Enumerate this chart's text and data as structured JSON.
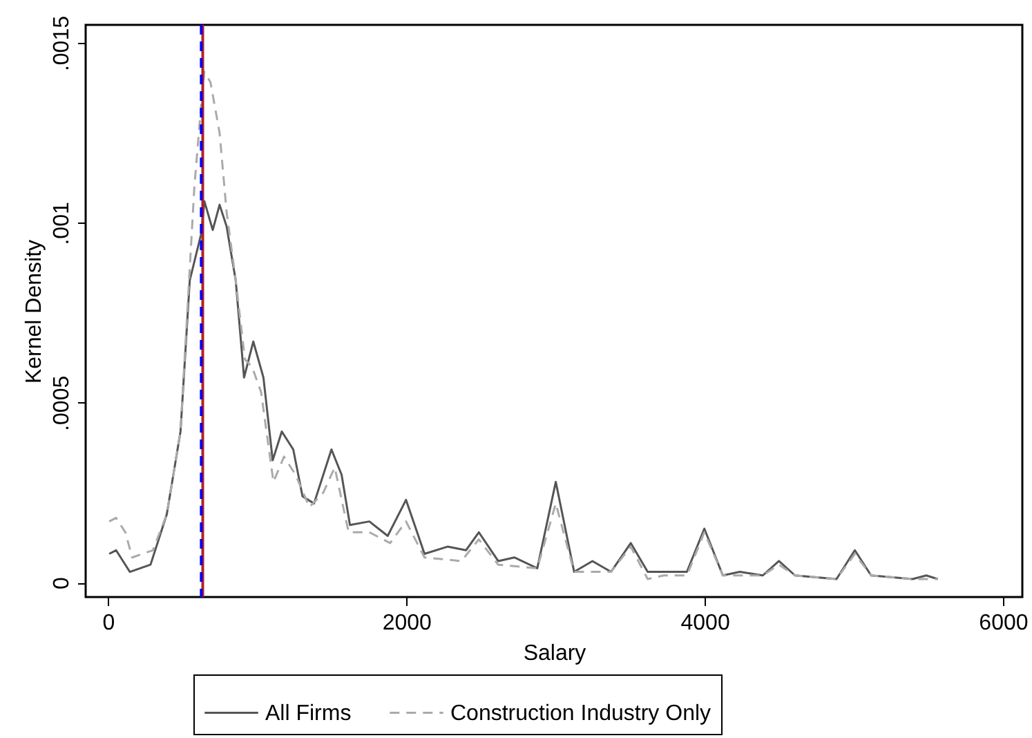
{
  "chart_data": {
    "type": "line",
    "xlabel": "Salary",
    "ylabel": "Kernel Density",
    "legend": "bottom",
    "xlim": [
      -150,
      6130
    ],
    "ylim": [
      -4e-05,
      0.00155
    ],
    "xticks": [
      0,
      2000,
      4000,
      6000
    ],
    "yticks": [
      {
        "value": 0,
        "label": "0"
      },
      {
        "value": 0.0005,
        "label": ".0005"
      },
      {
        "value": 0.001,
        "label": ".001"
      },
      {
        "value": 0.0015,
        "label": ".0015"
      }
    ],
    "series": [
      {
        "name": "All Firms",
        "color": "#555555",
        "line_style": "solid",
        "x": [
          8,
          54,
          146,
          285,
          394,
          486,
          548,
          625,
          646,
          702,
          748,
          795,
          856,
          912,
          974,
          1042,
          1104,
          1165,
          1242,
          1304,
          1381,
          1498,
          1566,
          1622,
          1752,
          1875,
          1998,
          2122,
          2276,
          2400,
          2486,
          2616,
          2724,
          2878,
          3002,
          3125,
          3248,
          3372,
          3505,
          3618,
          3727,
          3881,
          3998,
          4122,
          4236,
          4390,
          4498,
          4606,
          4884,
          5007,
          5116,
          5394,
          5486,
          5563
        ],
        "values": [
          8e-05,
          9e-05,
          3e-05,
          5e-05,
          0.00019,
          0.00042,
          0.00084,
          0.00097,
          0.00106,
          0.00098,
          0.00105,
          0.00099,
          0.00084,
          0.00057,
          0.00067,
          0.00057,
          0.00034,
          0.00042,
          0.00037,
          0.00024,
          0.00022,
          0.00037,
          0.0003,
          0.00016,
          0.00017,
          0.00013,
          0.00023,
          8e-05,
          0.0001,
          9e-05,
          0.00014,
          6e-05,
          7e-05,
          4e-05,
          0.00028,
          3e-05,
          6e-05,
          3e-05,
          0.00011,
          3e-05,
          3e-05,
          3e-05,
          0.00015,
          2e-05,
          3e-05,
          2e-05,
          6e-05,
          2e-05,
          1e-05,
          9e-05,
          2e-05,
          1e-05,
          2e-05,
          1e-05
        ]
      },
      {
        "name": "Construction Industry Only",
        "color": "#aaaaaa",
        "line_style": "dashed",
        "x": [
          8,
          54,
          116,
          162,
          301,
          394,
          486,
          579,
          625,
          646,
          687,
          748,
          795,
          856,
          918,
          965,
          1026,
          1109,
          1180,
          1257,
          1350,
          1443,
          1520,
          1613,
          1752,
          1891,
          1998,
          2122,
          2369,
          2486,
          2616,
          2878,
          3002,
          3125,
          3372,
          3505,
          3618,
          3727,
          3881,
          3998,
          4122,
          4390,
          4498,
          4606,
          4884,
          5007,
          5116,
          5394,
          5563
        ],
        "values": [
          0.00017,
          0.00018,
          0.00014,
          7e-05,
          9e-05,
          0.00019,
          0.00042,
          0.0011,
          0.00133,
          0.00142,
          0.00139,
          0.00125,
          0.00103,
          0.00084,
          0.00062,
          0.0006,
          0.00053,
          0.00028,
          0.00035,
          0.0003,
          0.00021,
          0.00025,
          0.00032,
          0.00014,
          0.00014,
          0.00011,
          0.00017,
          7e-05,
          6e-05,
          0.00012,
          5e-05,
          4e-05,
          0.00022,
          3e-05,
          3e-05,
          0.0001,
          1e-05,
          2e-05,
          2e-05,
          0.00014,
          2e-05,
          2e-05,
          5e-05,
          2e-05,
          1e-05,
          8e-05,
          2e-05,
          1e-05,
          1e-05
        ]
      }
    ],
    "ref_lines": [
      {
        "axis": "x",
        "value": 635,
        "color": "#b22222",
        "line_style": "solid"
      },
      {
        "axis": "x",
        "value": 625,
        "color": "#0000ff",
        "line_style": "dashed"
      }
    ]
  }
}
